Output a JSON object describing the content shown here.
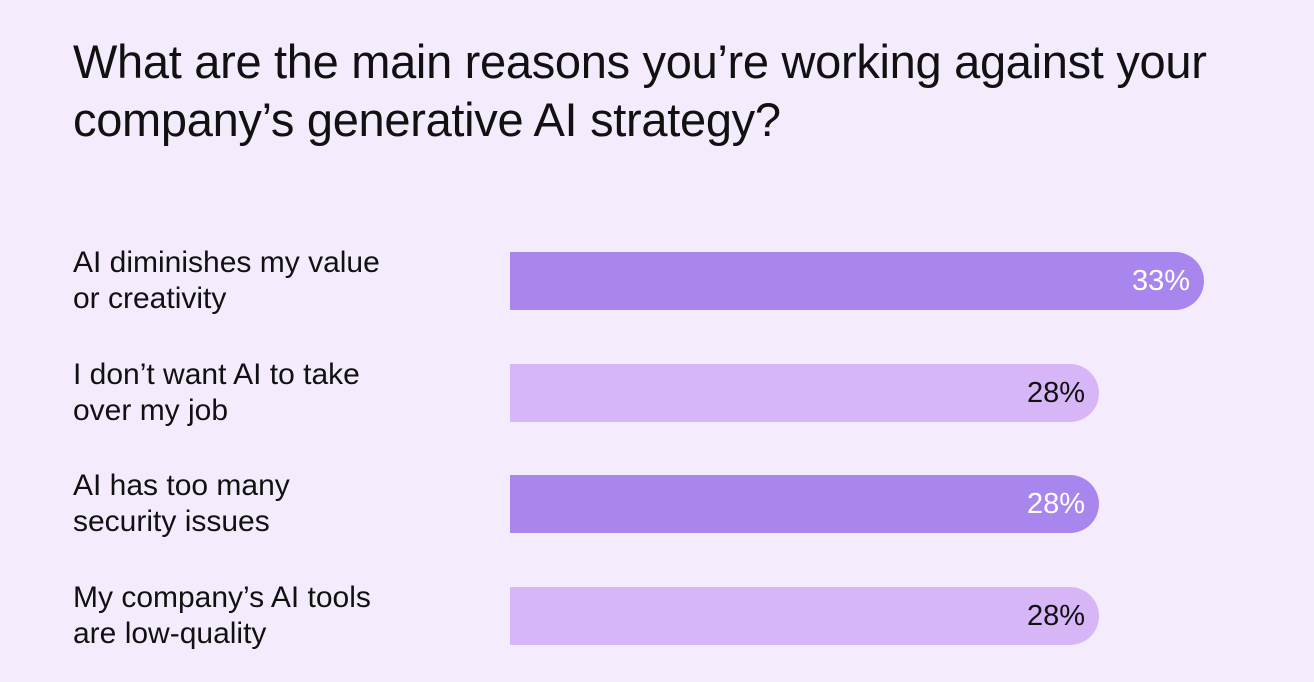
{
  "chart_data": {
    "type": "bar",
    "orientation": "horizontal",
    "title": "What are the main reasons you’re working against your company’s generative AI strategy?",
    "categories": [
      [
        "AI diminishes my value",
        "or creativity"
      ],
      [
        "I don’t want AI to take",
        "over my job"
      ],
      [
        "AI has too many",
        "security issues"
      ],
      [
        "My company’s AI tools",
        "are low-quality"
      ]
    ],
    "values": [
      33,
      28,
      28,
      28
    ],
    "value_labels": [
      "33%",
      "28%",
      "28%",
      "28%"
    ],
    "unit": "%",
    "xlim": [
      0,
      33
    ],
    "bar_colors": [
      "#a886ee",
      "#d6b6f6",
      "#a886ee",
      "#d6b6f6"
    ],
    "value_label_colors": [
      "#ffffff",
      "#111111",
      "#ffffff",
      "#111111"
    ],
    "grid": false,
    "legend": "none"
  }
}
